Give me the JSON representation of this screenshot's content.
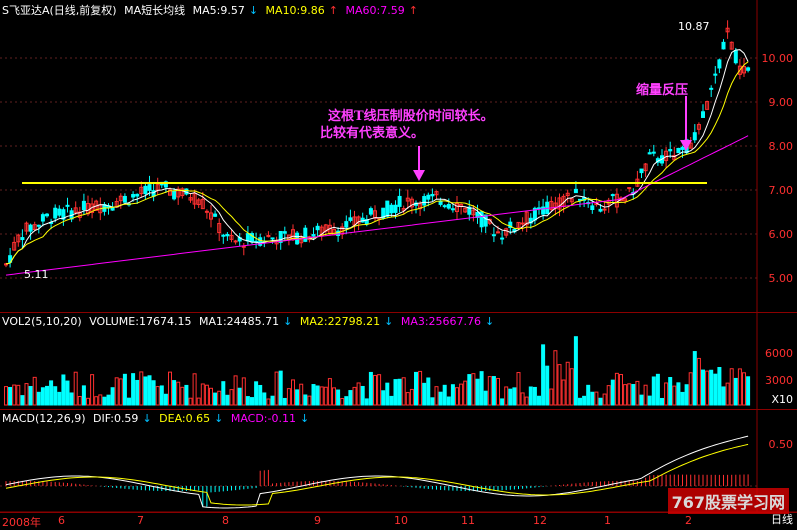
{
  "main": {
    "title": "S飞亚达A(日线,前复权)",
    "indicator": "MA短长均线",
    "ma5": "MA5:9.57",
    "ma10": "MA10:9.86",
    "ma60": "MA60:7.59",
    "high_label": "10.87",
    "low_label": "5.11",
    "y_ticks": [
      "10.00",
      "9.00",
      "8.00",
      "7.00",
      "6.00",
      "5.00"
    ],
    "annotation1_line1": "这根T线压制股价时间较长。",
    "annotation1_line2": "比较有代表意义。",
    "annotation2": "缩量反压"
  },
  "volume": {
    "title": "VOL2(5,10,20)",
    "volume": "VOLUME:17674.15",
    "ma1": "MA1:24485.71",
    "ma2": "MA2:22798.21",
    "ma3": "MA3:25667.76",
    "y_ticks": [
      "6000",
      "3000"
    ],
    "unit": "X10"
  },
  "macd": {
    "title": "MACD(12,26,9)",
    "dif": "DIF:0.59",
    "dea": "DEA:0.65",
    "macd": "MACD:-0.11",
    "y_ticks": [
      "0.50"
    ]
  },
  "x_axis": {
    "labels": [
      "2008年",
      "6",
      "7",
      "8",
      "9",
      "10",
      "11",
      "12",
      "1",
      "2"
    ]
  },
  "period": "日线",
  "watermark": "767股票学习网",
  "colors": {
    "up": "#ff3030",
    "down": "#00ffff",
    "ma5": "#ffffff",
    "ma10": "#ffff00",
    "ma60": "#ff00ff",
    "resistance": "#ffff00"
  }
}
